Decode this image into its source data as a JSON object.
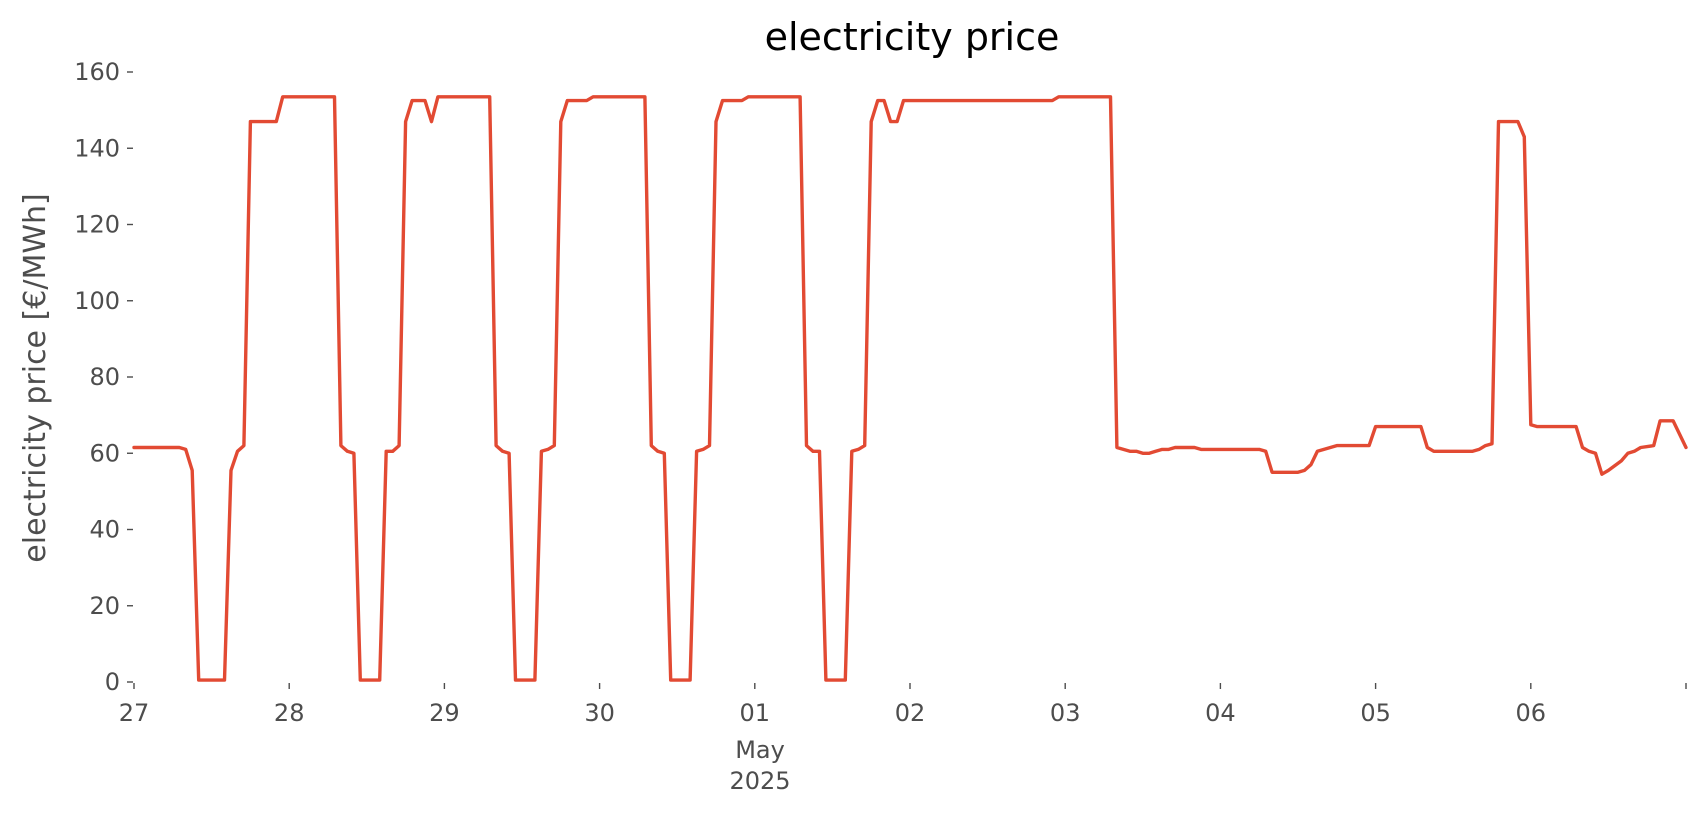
{
  "chart_data": {
    "type": "line",
    "title": "electricity price",
    "xlabel": "",
    "ylabel": "electricity price [€/MWh]",
    "ylim": [
      0,
      160
    ],
    "yticks": [
      0,
      20,
      40,
      60,
      80,
      100,
      120,
      140,
      160
    ],
    "xlim": [
      "2025-04-27 00:00",
      "2025-05-07 00:00"
    ],
    "xticks": [
      {
        "x": "2025-04-27 00:00",
        "label": "27"
      },
      {
        "x": "2025-04-28 00:00",
        "label": "28"
      },
      {
        "x": "2025-04-29 00:00",
        "label": "29"
      },
      {
        "x": "2025-04-30 00:00",
        "label": "30"
      },
      {
        "x": "2025-05-01 00:00",
        "label": "01"
      },
      {
        "x": "2025-05-02 00:00",
        "label": "02"
      },
      {
        "x": "2025-05-03 00:00",
        "label": "03"
      },
      {
        "x": "2025-05-04 00:00",
        "label": "04"
      },
      {
        "x": "2025-05-05 00:00",
        "label": "05"
      },
      {
        "x": "2025-05-06 00:00",
        "label": "06"
      },
      {
        "x": "2025-05-07 00:00",
        "label": ""
      }
    ],
    "month_label": "May",
    "year_label": "2025",
    "grid": false,
    "legend": "none",
    "colors": {
      "line": "#e24a33",
      "text": "#4d4d4d",
      "title": "#000000"
    },
    "series": [
      {
        "color": "#e24a33",
        "points": [
          [
            "2025-04-27 00:00",
            61.5
          ],
          [
            "2025-04-27 07:00",
            61.5
          ],
          [
            "2025-04-27 08:00",
            61.0
          ],
          [
            "2025-04-27 09:00",
            55.5
          ],
          [
            "2025-04-27 10:00",
            0.5
          ],
          [
            "2025-04-27 14:00",
            0.5
          ],
          [
            "2025-04-27 15:00",
            55.5
          ],
          [
            "2025-04-27 16:00",
            60.5
          ],
          [
            "2025-04-27 17:00",
            62.0
          ],
          [
            "2025-04-27 18:00",
            147.0
          ],
          [
            "2025-04-27 22:00",
            147.0
          ],
          [
            "2025-04-27 23:00",
            153.5
          ],
          [
            "2025-04-28 07:00",
            153.5
          ],
          [
            "2025-04-28 08:00",
            62.0
          ],
          [
            "2025-04-28 09:00",
            60.5
          ],
          [
            "2025-04-28 10:00",
            60.0
          ],
          [
            "2025-04-28 11:00",
            0.5
          ],
          [
            "2025-04-28 14:00",
            0.5
          ],
          [
            "2025-04-28 15:00",
            60.5
          ],
          [
            "2025-04-28 16:00",
            60.5
          ],
          [
            "2025-04-28 17:00",
            62.0
          ],
          [
            "2025-04-28 18:00",
            147.0
          ],
          [
            "2025-04-28 19:00",
            152.5
          ],
          [
            "2025-04-28 21:00",
            152.5
          ],
          [
            "2025-04-28 22:00",
            147.0
          ],
          [
            "2025-04-28 23:00",
            153.5
          ],
          [
            "2025-04-29 07:00",
            153.5
          ],
          [
            "2025-04-29 08:00",
            62.0
          ],
          [
            "2025-04-29 09:00",
            60.5
          ],
          [
            "2025-04-29 10:00",
            60.0
          ],
          [
            "2025-04-29 11:00",
            0.5
          ],
          [
            "2025-04-29 14:00",
            0.5
          ],
          [
            "2025-04-29 15:00",
            60.5
          ],
          [
            "2025-04-29 16:00",
            61.0
          ],
          [
            "2025-04-29 17:00",
            62.0
          ],
          [
            "2025-04-29 18:00",
            147.0
          ],
          [
            "2025-04-29 19:00",
            152.5
          ],
          [
            "2025-04-29 22:00",
            152.5
          ],
          [
            "2025-04-29 23:00",
            153.5
          ],
          [
            "2025-04-30 07:00",
            153.5
          ],
          [
            "2025-04-30 08:00",
            62.0
          ],
          [
            "2025-04-30 09:00",
            60.5
          ],
          [
            "2025-04-30 10:00",
            60.0
          ],
          [
            "2025-04-30 11:00",
            0.5
          ],
          [
            "2025-04-30 14:00",
            0.5
          ],
          [
            "2025-04-30 15:00",
            60.5
          ],
          [
            "2025-04-30 16:00",
            61.0
          ],
          [
            "2025-04-30 17:00",
            62.0
          ],
          [
            "2025-04-30 18:00",
            147.0
          ],
          [
            "2025-04-30 19:00",
            152.5
          ],
          [
            "2025-04-30 22:00",
            152.5
          ],
          [
            "2025-04-30 23:00",
            153.5
          ],
          [
            "2025-05-01 07:00",
            153.5
          ],
          [
            "2025-05-01 08:00",
            62.0
          ],
          [
            "2025-05-01 09:00",
            60.5
          ],
          [
            "2025-05-01 10:00",
            60.5
          ],
          [
            "2025-05-01 11:00",
            0.5
          ],
          [
            "2025-05-01 14:00",
            0.5
          ],
          [
            "2025-05-01 15:00",
            60.5
          ],
          [
            "2025-05-01 16:00",
            61.0
          ],
          [
            "2025-05-01 17:00",
            62.0
          ],
          [
            "2025-05-01 18:00",
            147.0
          ],
          [
            "2025-05-01 19:00",
            152.5
          ],
          [
            "2025-05-01 20:00",
            152.5
          ],
          [
            "2025-05-01 21:00",
            147.0
          ],
          [
            "2025-05-01 22:00",
            147.0
          ],
          [
            "2025-05-01 23:00",
            152.5
          ],
          [
            "2025-05-02 22:00",
            152.5
          ],
          [
            "2025-05-02 23:00",
            153.5
          ],
          [
            "2025-05-03 07:00",
            153.5
          ],
          [
            "2025-05-03 08:00",
            61.5
          ],
          [
            "2025-05-03 09:00",
            61.0
          ],
          [
            "2025-05-03 10:00",
            60.5
          ],
          [
            "2025-05-03 11:00",
            60.5
          ],
          [
            "2025-05-03 12:00",
            60.0
          ],
          [
            "2025-05-03 13:00",
            60.0
          ],
          [
            "2025-05-03 14:00",
            60.5
          ],
          [
            "2025-05-03 15:00",
            61.0
          ],
          [
            "2025-05-03 16:00",
            61.0
          ],
          [
            "2025-05-03 17:00",
            61.5
          ],
          [
            "2025-05-03 19:00",
            61.5
          ],
          [
            "2025-05-03 20:00",
            61.5
          ],
          [
            "2025-05-03 21:00",
            61.0
          ],
          [
            "2025-05-04 06:00",
            61.0
          ],
          [
            "2025-05-04 07:00",
            60.5
          ],
          [
            "2025-05-04 08:00",
            55.0
          ],
          [
            "2025-05-04 12:00",
            55.0
          ],
          [
            "2025-05-04 13:00",
            55.5
          ],
          [
            "2025-05-04 14:00",
            57.0
          ],
          [
            "2025-05-04 15:00",
            60.5
          ],
          [
            "2025-05-04 16:00",
            61.0
          ],
          [
            "2025-05-04 18:00",
            62.0
          ],
          [
            "2025-05-04 23:00",
            62.0
          ],
          [
            "2025-05-05 00:00",
            67.0
          ],
          [
            "2025-05-05 07:00",
            67.0
          ],
          [
            "2025-05-05 08:00",
            61.5
          ],
          [
            "2025-05-05 09:00",
            60.5
          ],
          [
            "2025-05-05 15:00",
            60.5
          ],
          [
            "2025-05-05 16:00",
            61.0
          ],
          [
            "2025-05-05 17:00",
            62.0
          ],
          [
            "2025-05-05 18:00",
            62.5
          ],
          [
            "2025-05-05 19:00",
            147.0
          ],
          [
            "2025-05-05 22:00",
            147.0
          ],
          [
            "2025-05-05 23:00",
            143.0
          ],
          [
            "2025-05-06 00:00",
            67.5
          ],
          [
            "2025-05-06 01:00",
            67.0
          ],
          [
            "2025-05-06 07:00",
            67.0
          ],
          [
            "2025-05-06 08:00",
            61.5
          ],
          [
            "2025-05-06 09:00",
            60.5
          ],
          [
            "2025-05-06 10:00",
            60.0
          ],
          [
            "2025-05-06 11:00",
            54.5
          ],
          [
            "2025-05-06 12:00",
            55.5
          ],
          [
            "2025-05-06 14:00",
            58.0
          ],
          [
            "2025-05-06 15:00",
            60.0
          ],
          [
            "2025-05-06 16:00",
            60.5
          ],
          [
            "2025-05-06 17:00",
            61.5
          ],
          [
            "2025-05-06 19:00",
            62.0
          ],
          [
            "2025-05-06 20:00",
            68.5
          ],
          [
            "2025-05-06 22:00",
            68.5
          ],
          [
            "2025-05-07 00:00",
            61.5
          ]
        ]
      }
    ]
  }
}
